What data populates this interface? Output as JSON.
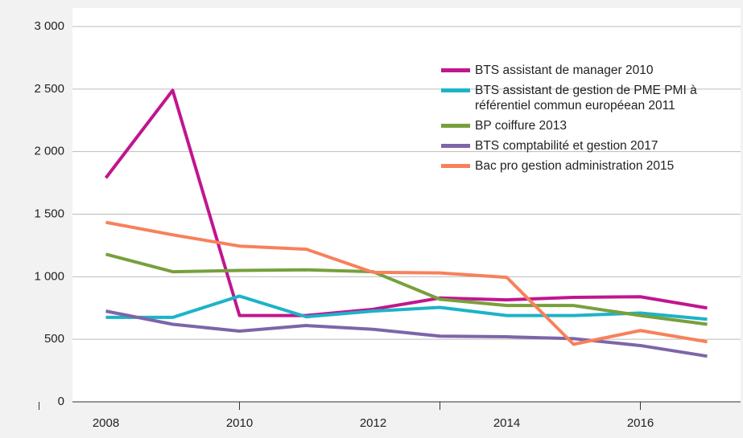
{
  "chart_data": {
    "type": "line",
    "x": [
      2008,
      2009,
      2010,
      2011,
      2012,
      2013,
      2014,
      2015,
      2016,
      2017
    ],
    "series": [
      {
        "name": "BTS assistant de manager 2010",
        "color": "#c0168f",
        "values": [
          1790,
          2490,
          690,
          690,
          740,
          830,
          815,
          835,
          840,
          750
        ]
      },
      {
        "name": "BTS assistant de gestion de PME PMI à référentiel commun européean 2011",
        "color": "#1db3c9",
        "values": [
          675,
          675,
          845,
          680,
          725,
          755,
          690,
          690,
          710,
          660
        ]
      },
      {
        "name": "BP coiffure 2013",
        "color": "#77a03d",
        "values": [
          1180,
          1040,
          1050,
          1055,
          1040,
          820,
          770,
          770,
          690,
          620
        ]
      },
      {
        "name": "BTS comptabilité et gestion 2017",
        "color": "#7d65a9",
        "values": [
          725,
          620,
          565,
          610,
          580,
          525,
          520,
          505,
          450,
          365
        ]
      },
      {
        "name": "Bac pro gestion administration 2015",
        "color": "#f7815b",
        "values": [
          1435,
          1335,
          1245,
          1220,
          1035,
          1030,
          995,
          460,
          570,
          480
        ]
      }
    ],
    "xlim": [
      2007.5,
      2017.5
    ],
    "xticks": [
      2008,
      2010,
      2012,
      2014,
      2016
    ],
    "ylim": [
      0,
      3000
    ],
    "yticks": [
      0,
      500,
      {
        "value": 1000,
        "label": "1 000"
      },
      {
        "value": 1500,
        "label": "1 500"
      },
      {
        "value": 2000,
        "label": "2 000"
      },
      {
        "value": 2500,
        "label": "2 500"
      },
      {
        "value": 3000,
        "label": "3 000"
      }
    ],
    "grid": true,
    "legend": "upper right"
  }
}
